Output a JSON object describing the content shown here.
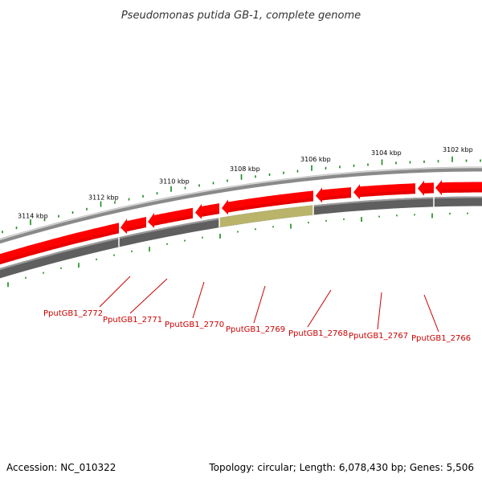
{
  "title": "Pseudomonas putida GB-1, complete genome",
  "accession": "Accession: NC_010322",
  "summary": "Topology: circular; Length: 6,078,430 bp; Genes: 5,506",
  "ticks": [
    "3114 kbp",
    "3112 kbp",
    "3110 kbp",
    "3108 kbp",
    "3106 kbp",
    "3104 kbp",
    "3102 kbp"
  ],
  "genes": [
    {
      "label": "PputGB1_2772",
      "strand": "-",
      "highlighted": false
    },
    {
      "label": "PputGB1_2771",
      "strand": "-",
      "highlighted": false
    },
    {
      "label": "PputGB1_2770",
      "strand": "-",
      "highlighted": false
    },
    {
      "label": "PputGB1_2769",
      "strand": "-",
      "highlighted": true
    },
    {
      "label": "PputGB1_2768",
      "strand": "-",
      "highlighted": false
    },
    {
      "label": "PputGB1_2767",
      "strand": "-",
      "highlighted": false
    },
    {
      "label": "PputGB1_2766",
      "strand": "-",
      "highlighted": false
    }
  ],
  "colors": {
    "gene": "#ff0000",
    "gene_dark": "#d10000",
    "gene_label": "#cc0000",
    "tick": "#1a8a1a",
    "backbone": "#8a8a8a",
    "backbone_dark": "#5f5f5f",
    "highlight": "#b9b46a"
  }
}
